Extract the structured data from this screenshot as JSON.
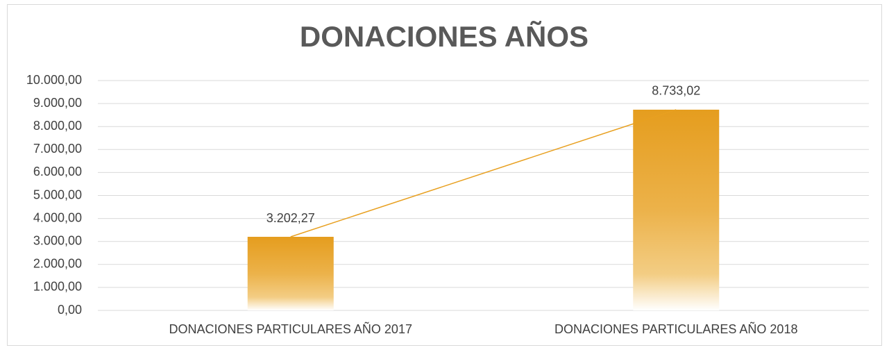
{
  "chart_data": {
    "type": "bar",
    "title": "DONACIONES AÑOS",
    "categories": [
      "DONACIONES PARTICULARES AÑO 2017",
      "DONACIONES PARTICULARES AÑO 2018"
    ],
    "values": [
      3202.27,
      8733.02
    ],
    "value_labels": [
      "3.202,27",
      "8.733,02"
    ],
    "color": "#e8a020",
    "line_overlay": true,
    "ylim": [
      0,
      10000
    ],
    "yticks": [
      {
        "value": 0,
        "label": "0,00"
      },
      {
        "value": 1000,
        "label": "1.000,00"
      },
      {
        "value": 2000,
        "label": "2.000,00"
      },
      {
        "value": 3000,
        "label": "3.000,00"
      },
      {
        "value": 4000,
        "label": "4.000,00"
      },
      {
        "value": 5000,
        "label": "5.000,00"
      },
      {
        "value": 6000,
        "label": "6.000,00"
      },
      {
        "value": 7000,
        "label": "7.000,00"
      },
      {
        "value": 8000,
        "label": "8.000,00"
      },
      {
        "value": 9000,
        "label": "9.000,00"
      },
      {
        "value": 10000,
        "label": "10.000,00"
      }
    ],
    "grid": true
  }
}
